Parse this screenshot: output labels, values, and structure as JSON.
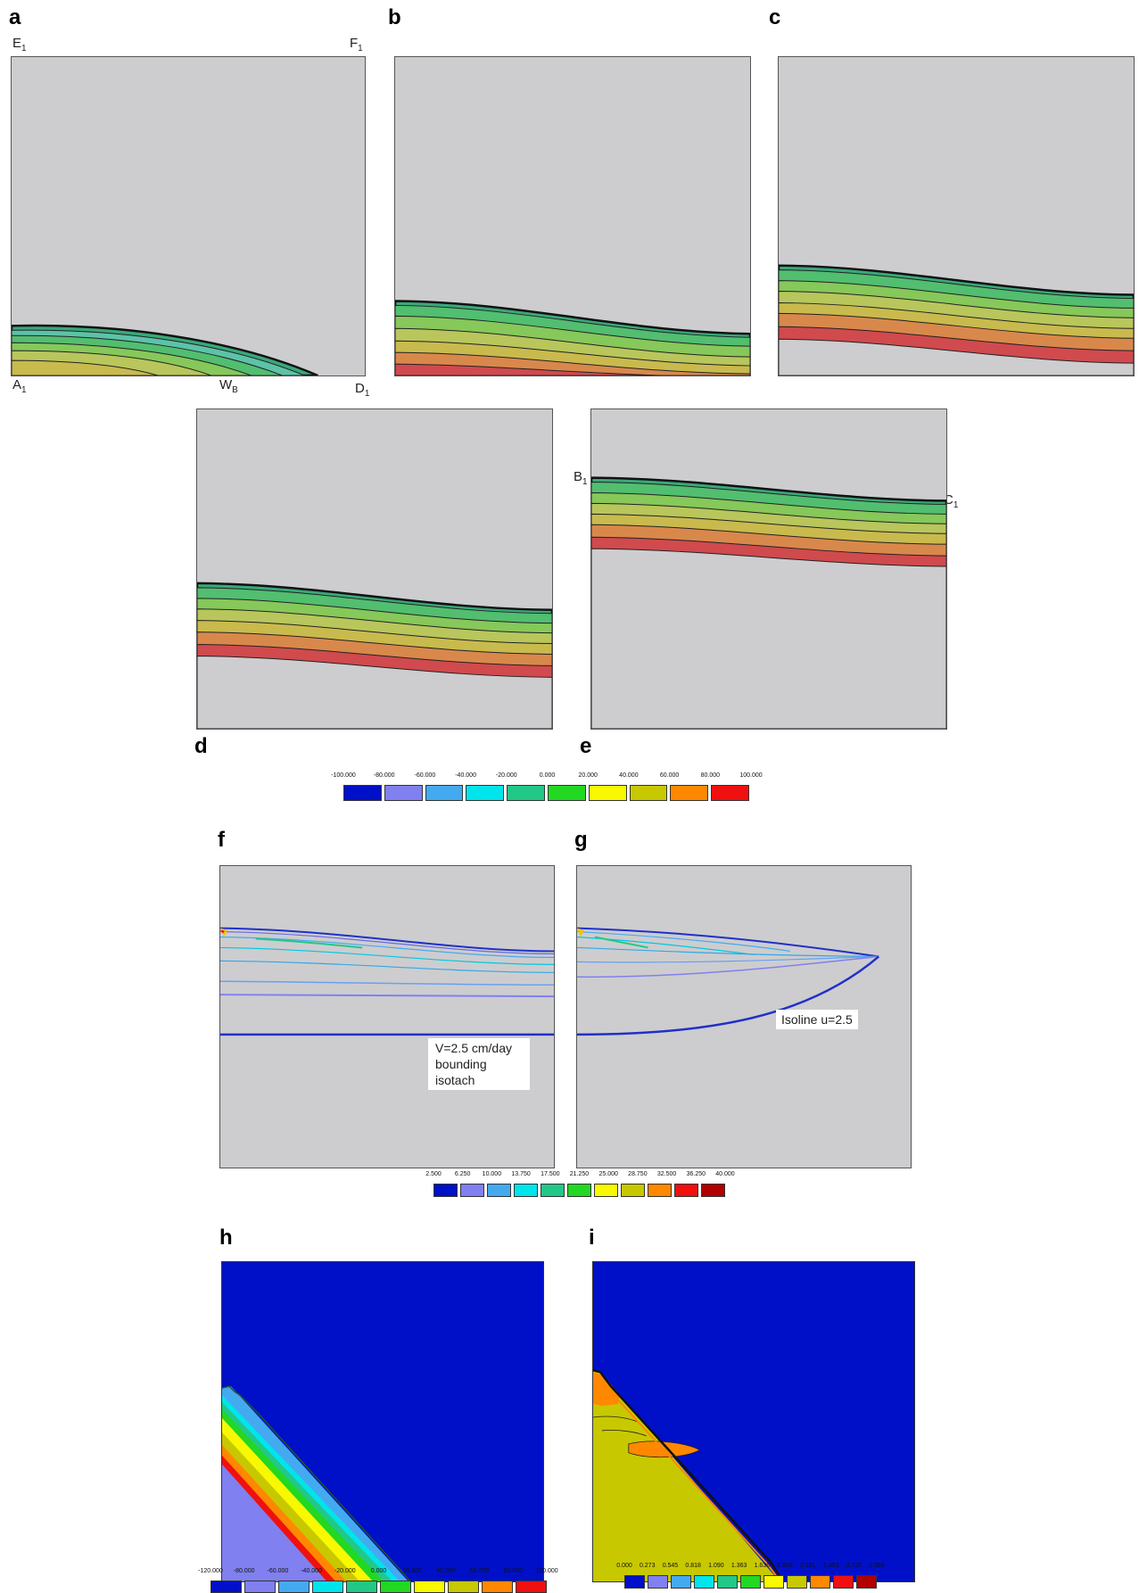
{
  "panel_labels": {
    "a": "a",
    "b": "b",
    "c": "c",
    "d": "d",
    "e": "e",
    "f": "f",
    "g": "g",
    "h": "h",
    "i": "i"
  },
  "corner_labels": {
    "E": {
      "main": "E",
      "sub": "1"
    },
    "F": {
      "main": "F",
      "sub": "1"
    },
    "A": {
      "main": "A",
      "sub": "1"
    },
    "W": {
      "main": "W",
      "sub": "B"
    },
    "D": {
      "main": "D",
      "sub": "1"
    },
    "B": {
      "main": "B",
      "sub": "1"
    },
    "C": {
      "main": "C",
      "sub": "1"
    }
  },
  "annotations": {
    "isotach": [
      "V=2.5 cm/day",
      "bounding",
      "isotach"
    ],
    "isoline": "Isoline u=2.5"
  },
  "legends": {
    "pressure": {
      "ticks": [
        "-100.000",
        "-80.000",
        "-60.000",
        "-40.000",
        "-20.000",
        "0.000",
        "20.000",
        "40.000",
        "60.000",
        "80.000",
        "100.000"
      ],
      "colors": [
        "#0010c8",
        "#8080f0",
        "#44aaf0",
        "#00e4ec",
        "#22c888",
        "#22d822",
        "#f8f800",
        "#c8c800",
        "#ff8800",
        "#f01010"
      ]
    },
    "velocity": {
      "ticks": [
        "2.500",
        "6.250",
        "10.000",
        "13.750",
        "17.500",
        "21.250",
        "25.000",
        "28.750",
        "32.500",
        "36.250",
        "40.000"
      ],
      "colors": [
        "#0010c8",
        "#8080f0",
        "#44aaf0",
        "#00e4ec",
        "#22c888",
        "#22d822",
        "#f8f800",
        "#c8c800",
        "#ff8800",
        "#f01010",
        "#b00000"
      ]
    },
    "pressure_h": {
      "ticks": [
        "-120.000",
        "-80.000",
        "-60.000",
        "-40.000",
        "-20.000",
        "0.000",
        "20.000",
        "40.000",
        "60.000",
        "80.000",
        "100.000"
      ],
      "colors": [
        "#0010c8",
        "#8080f0",
        "#44aaf0",
        "#00e4ec",
        "#22c888",
        "#22d822",
        "#f8f800",
        "#c8c800",
        "#ff8800",
        "#f01010"
      ]
    },
    "ratio_i": {
      "ticks": [
        "0.000",
        "0.273",
        "0.545",
        "0.818",
        "1.090",
        "1.363",
        "1.636",
        "1.908",
        "2.181",
        "2.453",
        "2.726",
        "2.999"
      ],
      "colors": [
        "#0010c8",
        "#8080f0",
        "#44aaf0",
        "#00e4ec",
        "#22c888",
        "#22d822",
        "#f8f800",
        "#c8c800",
        "#ff8800",
        "#f01010",
        "#b00000"
      ]
    }
  },
  "colors": {
    "background": "#cdcdcf",
    "band_fill": [
      "#d04a4e",
      "#d9884c",
      "#c9ba4e",
      "#b8c65c",
      "#86c85a",
      "#52be70",
      "#3aa87a"
    ],
    "contour_line": "#222222"
  }
}
